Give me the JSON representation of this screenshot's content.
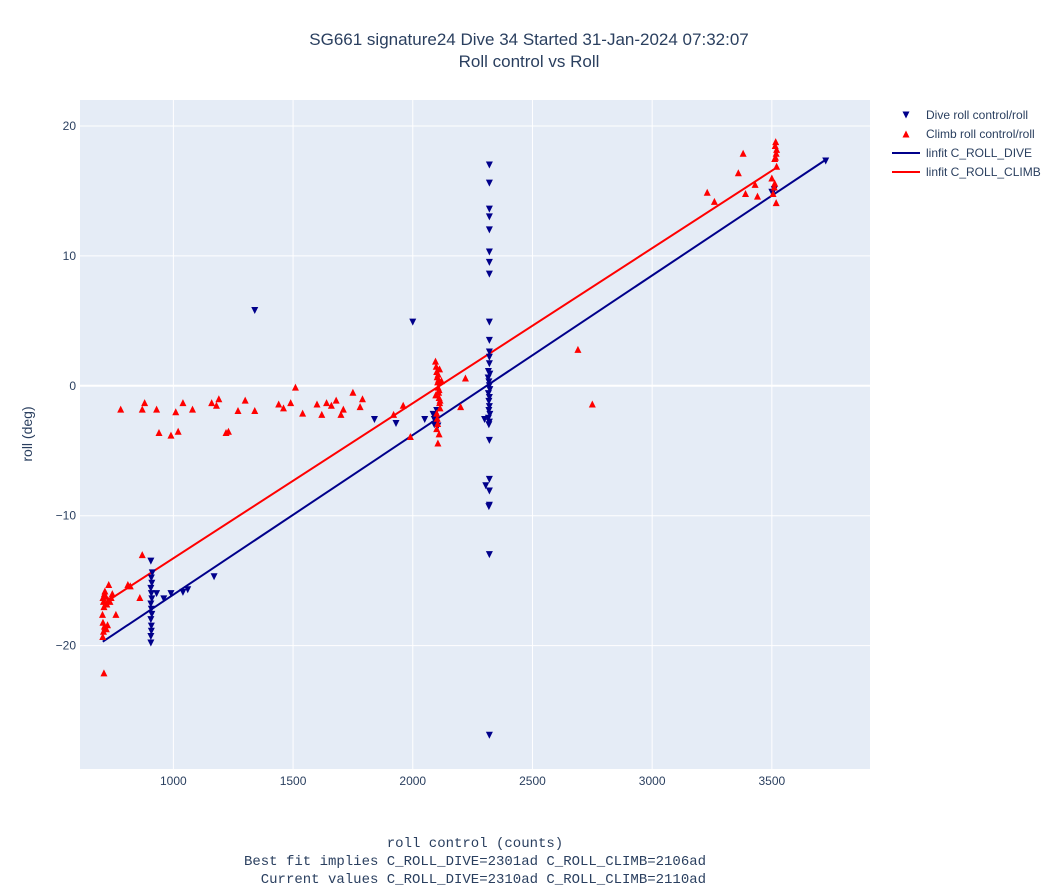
{
  "title_line1": "SG661 signature24 Dive 34 Started 31-Jan-2024 07:32:07",
  "title_line2": "Roll control vs Roll",
  "footer": {
    "xlabel": "roll control (counts)",
    "line2": "Best fit implies C_ROLL_DIVE=2301ad C_ROLL_CLIMB=2106ad",
    "line3": "  Current values C_ROLL_DIVE=2310ad C_ROLL_CLIMB=2110ad"
  },
  "colors": {
    "plot_bg": "#e5ecf6",
    "grid": "#ffffff",
    "dive": "#00008b",
    "climb": "#ff0000"
  },
  "chart_data": {
    "type": "scatter",
    "title": "SG661 signature24 Dive 34 Started 31-Jan-2024 07:32:07 — Roll control vs Roll",
    "xlabel": "roll control (counts)",
    "ylabel": "roll (deg)",
    "xlim": [
      610,
      3910
    ],
    "ylim": [
      -29.5,
      22
    ],
    "x_ticks": [
      1000,
      1500,
      2000,
      2500,
      3000,
      3500
    ],
    "y_ticks": [
      20,
      10,
      0,
      -10,
      -20
    ],
    "grid": true,
    "legend_position": "top-right",
    "series": [
      {
        "name": "Dive roll control/roll",
        "marker": "triangle-down",
        "color": "#00008b",
        "points": [
          [
            906,
            -19.8
          ],
          [
            906,
            -19.3
          ],
          [
            908,
            -18.9
          ],
          [
            908,
            -18.5
          ],
          [
            906,
            -18.0
          ],
          [
            910,
            -17.6
          ],
          [
            908,
            -17.2
          ],
          [
            906,
            -16.8
          ],
          [
            910,
            -16.4
          ],
          [
            908,
            -16.0
          ],
          [
            906,
            -15.6
          ],
          [
            910,
            -15.2
          ],
          [
            908,
            -14.8
          ],
          [
            912,
            -14.4
          ],
          [
            906,
            -13.5
          ],
          [
            930,
            -16.0
          ],
          [
            960,
            -16.4
          ],
          [
            990,
            -16.0
          ],
          [
            1040,
            -15.9
          ],
          [
            1060,
            -15.7
          ],
          [
            1170,
            -14.7
          ],
          [
            1340,
            5.8
          ],
          [
            2000,
            4.9
          ],
          [
            1840,
            -2.6
          ],
          [
            1930,
            -2.9
          ],
          [
            2050,
            -2.6
          ],
          [
            2085,
            -2.2
          ],
          [
            2090,
            -2.6
          ],
          [
            2090,
            -3.0
          ],
          [
            2095,
            -2.4
          ],
          [
            2100,
            -2.9
          ],
          [
            2100,
            -1.9
          ],
          [
            2105,
            -3.1
          ],
          [
            2095,
            -2.7
          ],
          [
            2320,
            17.0
          ],
          [
            2320,
            15.6
          ],
          [
            2320,
            13.6
          ],
          [
            2320,
            13.0
          ],
          [
            2320,
            12.0
          ],
          [
            2320,
            10.3
          ],
          [
            2320,
            9.5
          ],
          [
            2320,
            8.6
          ],
          [
            2320,
            4.9
          ],
          [
            2320,
            3.5
          ],
          [
            2320,
            2.6
          ],
          [
            2320,
            2.2
          ],
          [
            2320,
            1.7
          ],
          [
            2315,
            0.6
          ],
          [
            2318,
            0.3
          ],
          [
            2320,
            0.0
          ],
          [
            2322,
            -0.3
          ],
          [
            2316,
            -0.6
          ],
          [
            2320,
            -0.9
          ],
          [
            2318,
            -1.2
          ],
          [
            2322,
            0.9
          ],
          [
            2316,
            1.1
          ],
          [
            2320,
            -1.6
          ],
          [
            2318,
            -1.9
          ],
          [
            2322,
            -2.2
          ],
          [
            2316,
            -2.5
          ],
          [
            2320,
            -2.8
          ],
          [
            2318,
            -3.0
          ],
          [
            2300,
            -2.6
          ],
          [
            2305,
            -7.7
          ],
          [
            2320,
            -7.2
          ],
          [
            2320,
            -8.1
          ],
          [
            2320,
            -4.2
          ],
          [
            2320,
            -9.2
          ],
          [
            2318,
            -9.3
          ],
          [
            2320,
            -13.0
          ],
          [
            2320,
            -26.9
          ],
          [
            3500,
            14.9
          ],
          [
            3510,
            15.1
          ],
          [
            3725,
            17.3
          ]
        ]
      },
      {
        "name": "Climb roll control/roll",
        "marker": "triangle-up",
        "color": "#ff0000",
        "points": [
          [
            710,
            -22.1
          ],
          [
            705,
            -19.3
          ],
          [
            708,
            -18.9
          ],
          [
            712,
            -18.5
          ],
          [
            706,
            -18.2
          ],
          [
            715,
            -18.6
          ],
          [
            720,
            -18.7
          ],
          [
            725,
            -18.4
          ],
          [
            704,
            -17.6
          ],
          [
            710,
            -17.0
          ],
          [
            708,
            -16.6
          ],
          [
            706,
            -16.3
          ],
          [
            712,
            -16.0
          ],
          [
            714,
            -15.8
          ],
          [
            718,
            -16.2
          ],
          [
            722,
            -16.8
          ],
          [
            728,
            -16.5
          ],
          [
            735,
            -16.6
          ],
          [
            740,
            -16.3
          ],
          [
            745,
            -16.0
          ],
          [
            730,
            -15.3
          ],
          [
            760,
            -17.6
          ],
          [
            810,
            -15.3
          ],
          [
            820,
            -15.4
          ],
          [
            860,
            -16.3
          ],
          [
            870,
            -13.0
          ],
          [
            880,
            -1.3
          ],
          [
            780,
            -1.8
          ],
          [
            870,
            -1.8
          ],
          [
            930,
            -1.8
          ],
          [
            940,
            -3.6
          ],
          [
            990,
            -3.8
          ],
          [
            1010,
            -2.0
          ],
          [
            1020,
            -3.5
          ],
          [
            1040,
            -1.3
          ],
          [
            1080,
            -1.8
          ],
          [
            1160,
            -1.3
          ],
          [
            1180,
            -1.5
          ],
          [
            1190,
            -1.0
          ],
          [
            1220,
            -3.6
          ],
          [
            1230,
            -3.5
          ],
          [
            1270,
            -1.9
          ],
          [
            1300,
            -1.1
          ],
          [
            1340,
            -1.9
          ],
          [
            1440,
            -1.4
          ],
          [
            1460,
            -1.7
          ],
          [
            1490,
            -1.3
          ],
          [
            1510,
            -0.1
          ],
          [
            1540,
            -2.1
          ],
          [
            1600,
            -1.4
          ],
          [
            1620,
            -2.2
          ],
          [
            1640,
            -1.3
          ],
          [
            1660,
            -1.5
          ],
          [
            1680,
            -1.1
          ],
          [
            1700,
            -2.2
          ],
          [
            1710,
            -1.8
          ],
          [
            1750,
            -0.5
          ],
          [
            1790,
            -1.0
          ],
          [
            1780,
            -1.6
          ],
          [
            1920,
            -2.2
          ],
          [
            1960,
            -1.5
          ],
          [
            1990,
            -3.9
          ],
          [
            2095,
            1.9
          ],
          [
            2098,
            1.5
          ],
          [
            2100,
            1.1
          ],
          [
            2102,
            0.7
          ],
          [
            2104,
            0.3
          ],
          [
            2106,
            -0.1
          ],
          [
            2108,
            -0.5
          ],
          [
            2110,
            -0.9
          ],
          [
            2112,
            -1.3
          ],
          [
            2114,
            -1.7
          ],
          [
            2100,
            -2.1
          ],
          [
            2102,
            -2.5
          ],
          [
            2104,
            -2.9
          ],
          [
            2106,
            0.9
          ],
          [
            2108,
            0.5
          ],
          [
            2110,
            -0.3
          ],
          [
            2096,
            -0.7
          ],
          [
            2112,
            1.3
          ],
          [
            2114,
            -1.1
          ],
          [
            2100,
            -3.3
          ],
          [
            2105,
            -4.4
          ],
          [
            2110,
            -3.7
          ],
          [
            2120,
            0.4
          ],
          [
            2200,
            -1.6
          ],
          [
            2220,
            0.6
          ],
          [
            2690,
            2.8
          ],
          [
            2750,
            -1.4
          ],
          [
            3230,
            14.9
          ],
          [
            3260,
            14.2
          ],
          [
            3360,
            16.4
          ],
          [
            3380,
            17.9
          ],
          [
            3390,
            14.8
          ],
          [
            3430,
            15.5
          ],
          [
            3440,
            14.6
          ],
          [
            3500,
            16.0
          ],
          [
            3505,
            14.8
          ],
          [
            3510,
            15.3
          ],
          [
            3512,
            15.6
          ],
          [
            3515,
            17.6
          ],
          [
            3518,
            17.9
          ],
          [
            3520,
            18.2
          ],
          [
            3514,
            18.5
          ],
          [
            3516,
            18.8
          ],
          [
            3512,
            17.5
          ],
          [
            3518,
            14.1
          ],
          [
            3520,
            16.9
          ]
        ]
      },
      {
        "name": "linfit C_ROLL_DIVE",
        "type": "line",
        "color": "#00008b",
        "points": [
          [
            705,
            -19.7
          ],
          [
            3725,
            17.4
          ]
        ]
      },
      {
        "name": "linfit C_ROLL_CLIMB",
        "type": "line",
        "color": "#ff0000",
        "points": [
          [
            705,
            -16.8
          ],
          [
            3520,
            16.8
          ]
        ]
      }
    ]
  }
}
